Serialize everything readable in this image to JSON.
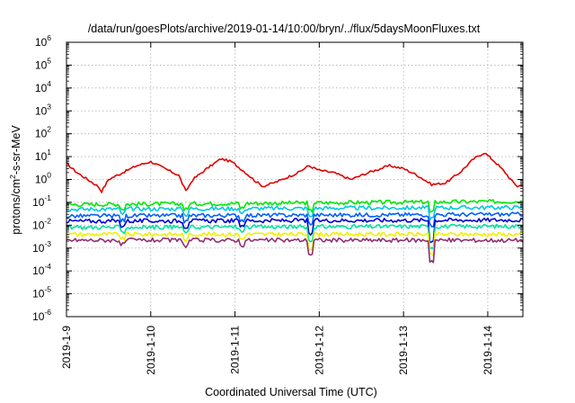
{
  "chart_data": {
    "type": "line",
    "title": "/data/run/goesPlots/archive/2019-01-14/10:00/bryn/../flux/5daysMoonFluxes.txt",
    "xlabel": "Coordinated Universal Time (UTC)",
    "ylabel_parts": [
      "protons/cm",
      "2",
      "-s-sr-MeV"
    ],
    "yscale": "log",
    "ylim_exp": [
      -6,
      6
    ],
    "y_ticks": [
      {
        "base": "10",
        "exp": "6"
      },
      {
        "base": "10",
        "exp": "5"
      },
      {
        "base": "10",
        "exp": "4"
      },
      {
        "base": "10",
        "exp": "3"
      },
      {
        "base": "10",
        "exp": "2"
      },
      {
        "base": "10",
        "exp": "1"
      },
      {
        "base": "10",
        "exp": "0"
      },
      {
        "base": "10",
        "exp": "-1"
      },
      {
        "base": "10",
        "exp": "-2"
      },
      {
        "base": "10",
        "exp": "-3"
      },
      {
        "base": "10",
        "exp": "-4"
      },
      {
        "base": "10",
        "exp": "-5"
      },
      {
        "base": "10",
        "exp": "-6"
      }
    ],
    "x_ticks": [
      "2019-1-9",
      "2019-1-10",
      "2019-1-11",
      "2019-1-12",
      "2019-1-13",
      "2019-1-14"
    ],
    "xlim_days": [
      "2019-01-09 00:00",
      "2019-01-14 10:00"
    ],
    "grid": true,
    "legend": "none",
    "series": [
      {
        "color": "#e00000",
        "points": [
          [
            "2019-01-09 00:00",
            5.0
          ],
          [
            "2019-01-09 03:00",
            2.0
          ],
          [
            "2019-01-09 06:00",
            1.0
          ],
          [
            "2019-01-09 09:00",
            0.5
          ],
          [
            "2019-01-09 10:00",
            0.3
          ],
          [
            "2019-01-09 12:00",
            1.0
          ],
          [
            "2019-01-09 16:00",
            2.0
          ],
          [
            "2019-01-09 20:00",
            4.0
          ],
          [
            "2019-01-10 00:00",
            6.0
          ],
          [
            "2019-01-10 04:00",
            3.0
          ],
          [
            "2019-01-10 08:00",
            1.5
          ],
          [
            "2019-01-10 10:00",
            0.3
          ],
          [
            "2019-01-10 12:00",
            1.0
          ],
          [
            "2019-01-10 16:00",
            3.0
          ],
          [
            "2019-01-10 20:00",
            8.0
          ],
          [
            "2019-01-10 23:00",
            6.0
          ],
          [
            "2019-01-11 03:00",
            2.0
          ],
          [
            "2019-01-11 06:00",
            0.8
          ],
          [
            "2019-01-11 08:00",
            0.5
          ],
          [
            "2019-01-11 12:00",
            0.8
          ],
          [
            "2019-01-11 18:00",
            2.0
          ],
          [
            "2019-01-11 21:00",
            4.0
          ],
          [
            "2019-01-12 00:00",
            2.5
          ],
          [
            "2019-01-12 04:00",
            2.0
          ],
          [
            "2019-01-12 09:00",
            1.0
          ],
          [
            "2019-01-12 14:00",
            2.0
          ],
          [
            "2019-01-12 20:00",
            4.0
          ],
          [
            "2019-01-13 00:00",
            3.0
          ],
          [
            "2019-01-13 04:00",
            1.5
          ],
          [
            "2019-01-13 08:00",
            0.6
          ],
          [
            "2019-01-13 12:00",
            0.7
          ],
          [
            "2019-01-13 16:00",
            2.0
          ],
          [
            "2019-01-13 20:00",
            8.0
          ],
          [
            "2019-01-13 23:00",
            15.0
          ],
          [
            "2019-01-14 02:00",
            6.0
          ],
          [
            "2019-01-14 05:00",
            2.0
          ],
          [
            "2019-01-14 07:00",
            0.8
          ],
          [
            "2019-01-14 08:30",
            0.5
          ],
          [
            "2019-01-14 10:00",
            0.6
          ]
        ]
      },
      {
        "color": "#00e800",
        "points": [
          [
            "2019-01-09 00:00",
            0.08
          ],
          [
            "2019-01-14 10:00",
            0.11
          ]
        ]
      },
      {
        "color": "#00c8e0",
        "points": [
          [
            "2019-01-09 00:00",
            0.05
          ],
          [
            "2019-01-14 10:00",
            0.06
          ]
        ]
      },
      {
        "color": "#0060ff",
        "points": [
          [
            "2019-01-09 00:00",
            0.025
          ],
          [
            "2019-01-14 10:00",
            0.03
          ]
        ]
      },
      {
        "color": "#0000d0",
        "points": [
          [
            "2019-01-09 00:00",
            0.015
          ],
          [
            "2019-01-14 10:00",
            0.017
          ]
        ]
      },
      {
        "color": "#00e0a0",
        "points": [
          [
            "2019-01-09 00:00",
            0.008
          ],
          [
            "2019-01-14 10:00",
            0.009
          ]
        ]
      },
      {
        "color": "#f0f000",
        "points": [
          [
            "2019-01-09 00:00",
            0.004
          ],
          [
            "2019-01-14 10:00",
            0.004
          ]
        ]
      },
      {
        "color": "#903070",
        "points": [
          [
            "2019-01-09 00:00",
            0.0022
          ],
          [
            "2019-01-14 10:00",
            0.0022
          ]
        ]
      }
    ]
  }
}
